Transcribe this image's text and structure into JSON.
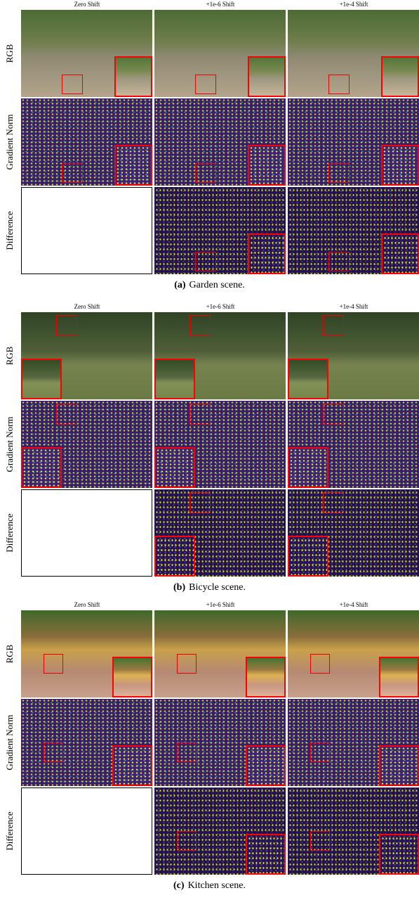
{
  "panels": [
    {
      "columns": [
        "Zero Shift",
        "+1e-6 Shift",
        "+1e-4 Shift"
      ],
      "rows": [
        "RGB",
        "Gradient Norm",
        "Difference"
      ],
      "caption": {
        "label": "(a)",
        "text": "Garden scene."
      }
    },
    {
      "columns": [
        "Zero Shift",
        "+1e-6 Shift",
        "+1e-4 Shift"
      ],
      "rows": [
        "RGB",
        "Gradient Norm",
        "Difference"
      ],
      "caption": {
        "label": "(b)",
        "text": "Bicycle scene."
      }
    },
    {
      "columns": [
        "Zero Shift",
        "+1e-6 Shift",
        "+1e-4 Shift"
      ],
      "rows": [
        "RGB",
        "Gradient Norm",
        "Difference"
      ],
      "caption": {
        "label": "(c)",
        "text": "Kitchen scene."
      }
    }
  ]
}
